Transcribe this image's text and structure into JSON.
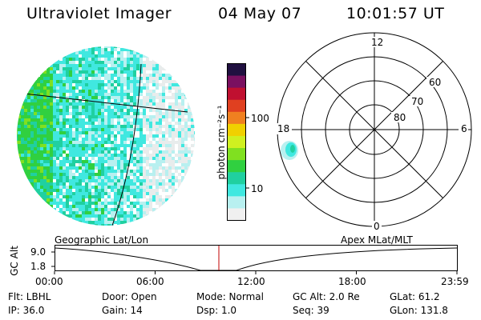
{
  "header": {
    "instrument": "Ultraviolet Imager",
    "date": "04 May 07",
    "time": "10:01:57 UT"
  },
  "colorbar": {
    "unit_label": "photon cm⁻²s⁻¹",
    "ticks": [
      "100",
      "10"
    ],
    "colors": [
      "#201040",
      "#7a1060",
      "#c01030",
      "#e04020",
      "#f08020",
      "#f0d000",
      "#d0f020",
      "#80e020",
      "#30d040",
      "#20d0a0",
      "#40e8e0",
      "#b8f0f0",
      "#f0f0f0"
    ]
  },
  "polar_plot": {
    "mlt_labels": [
      "12",
      "18",
      "6",
      "0"
    ],
    "lat_labels": [
      "60",
      "70",
      "80"
    ]
  },
  "timeline": {
    "left_label": "Geographic Lat/Lon",
    "right_label": "Apex MLat/MLT",
    "axis_title": "GC Alt",
    "y_ticks": [
      "9.0",
      "1.8"
    ],
    "x_ticks": [
      "00:00",
      "06:00",
      "12:00",
      "18:00",
      "23:59"
    ],
    "current_time_color": "#c00000"
  },
  "info": {
    "row1": {
      "flt": "Flt: LBHL",
      "door": "Door: Open",
      "mode": "Mode: Normal",
      "gc_alt": "GC Alt: 2.0 Re",
      "glat": "GLat:  61.2"
    },
    "row2": {
      "ip": "IP: 36.0",
      "gain": "Gain: 14",
      "dsp": "Dsp:     1.0",
      "seq": "Seq: 39",
      "glon": "GLon: 131.8"
    }
  }
}
